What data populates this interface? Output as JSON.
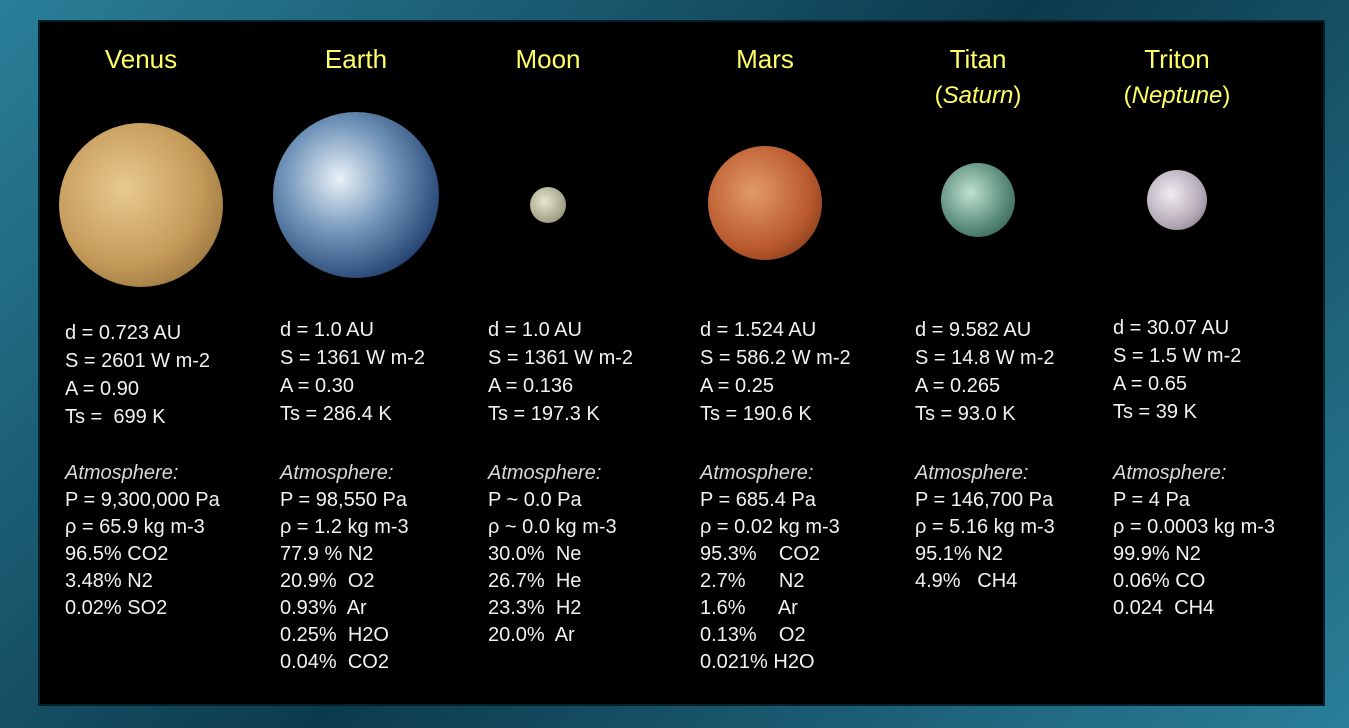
{
  "bodies": [
    {
      "name": "Venus",
      "stats": [
        "d = 0.723 AU",
        "S = 2601 W m-2",
        "A = 0.90",
        "Ts =  699 K"
      ],
      "atmosphere_label": "Atmosphere:",
      "atmosphere": [
        "P = 9,300,000 Pa",
        "ρ = 65.9 kg m-3",
        "96.5% CO2",
        "3.48% N2",
        "0.02% SO2"
      ]
    },
    {
      "name": "Earth",
      "stats": [
        "d = 1.0 AU",
        "S = 1361 W m-2",
        "A = 0.30",
        "Ts = 286.4 K"
      ],
      "atmosphere_label": "Atmosphere:",
      "atmosphere": [
        "P = 98,550 Pa",
        "ρ = 1.2 kg m-3",
        "77.9 % N2",
        "20.9%  O2",
        "0.93%  Ar",
        "0.25%  H2O",
        "0.04%  CO2"
      ]
    },
    {
      "name": "Moon",
      "stats": [
        "d = 1.0 AU",
        "S = 1361 W m-2",
        "A = 0.136",
        "Ts = 197.3 K"
      ],
      "atmosphere_label": "Atmosphere:",
      "atmosphere": [
        "P ~ 0.0 Pa",
        "ρ ~ 0.0 kg m-3",
        "30.0%  Ne",
        "26.7%  He",
        "23.3%  H2",
        "20.0%  Ar"
      ]
    },
    {
      "name": "Mars",
      "stats": [
        "d = 1.524 AU",
        "S = 586.2 W m-2",
        "A = 0.25",
        "Ts = 190.6 K"
      ],
      "atmosphere_label": "Atmosphere:",
      "atmosphere": [
        "P = 685.4 Pa",
        "ρ = 0.02 kg m-3",
        "95.3%    CO2",
        "2.7%      N2",
        "1.6%      Ar",
        "0.13%    O2",
        "0.021% H2O"
      ]
    },
    {
      "name": "Titan",
      "subtitle": [
        "(",
        "Saturn",
        ")"
      ],
      "stats": [
        "d = 9.582 AU",
        "S = 14.8 W m-2",
        "A = 0.265",
        "Ts = 93.0 K"
      ],
      "atmosphere_label": "Atmosphere:",
      "atmosphere": [
        "P = 146,700 Pa",
        "ρ = 5.16 kg m-3",
        "95.1% N2",
        "4.9%   CH4"
      ]
    },
    {
      "name": "Triton",
      "subtitle": [
        "(",
        "Neptune",
        ")"
      ],
      "stats": [
        "d = 30.07 AU",
        "S = 1.5 W m-2",
        "A = 0.65",
        "Ts = 39 K"
      ],
      "atmosphere_label": "Atmosphere:",
      "atmosphere": [
        "P = 4 Pa",
        "ρ = 0.0003 kg m-3",
        "99.9% N2",
        "0.06% CO",
        "0.024  CH4"
      ]
    }
  ]
}
